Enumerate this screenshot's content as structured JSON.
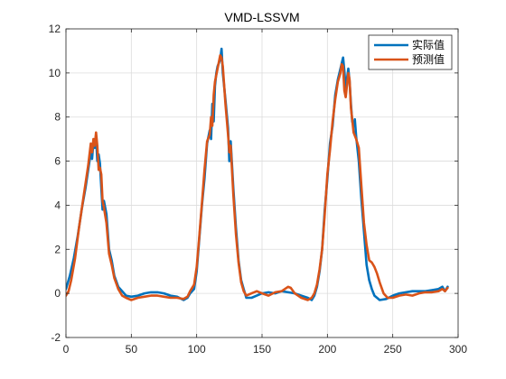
{
  "chart_data": {
    "type": "line",
    "title": "VMD-LSSVM",
    "xlabel": "",
    "ylabel": "",
    "xlim": [
      0,
      300
    ],
    "ylim": [
      -2,
      12
    ],
    "xticks": [
      0,
      50,
      100,
      150,
      200,
      250,
      300
    ],
    "yticks": [
      -2,
      0,
      2,
      4,
      6,
      8,
      10,
      12
    ],
    "grid": true,
    "legend_position": "top-right",
    "series": [
      {
        "name": "实际值",
        "color": "#0072BD",
        "points": [
          [
            0,
            0.2
          ],
          [
            3,
            0.8
          ],
          [
            6,
            1.6
          ],
          [
            9,
            2.6
          ],
          [
            12,
            3.8
          ],
          [
            15,
            4.8
          ],
          [
            17,
            5.6
          ],
          [
            19,
            6.4
          ],
          [
            20,
            6.1
          ],
          [
            21,
            6.9
          ],
          [
            22,
            6.6
          ],
          [
            23,
            7.1
          ],
          [
            24,
            6.0
          ],
          [
            25,
            6.3
          ],
          [
            26,
            5.9
          ],
          [
            27,
            4.8
          ],
          [
            28,
            3.8
          ],
          [
            29,
            4.2
          ],
          [
            31,
            3.6
          ],
          [
            33,
            2.0
          ],
          [
            35,
            1.5
          ],
          [
            37,
            0.8
          ],
          [
            40,
            0.3
          ],
          [
            43,
            0.1
          ],
          [
            46,
            -0.1
          ],
          [
            50,
            -0.15
          ],
          [
            55,
            -0.1
          ],
          [
            60,
            0.0
          ],
          [
            65,
            0.05
          ],
          [
            70,
            0.05
          ],
          [
            75,
            0.0
          ],
          [
            80,
            -0.1
          ],
          [
            85,
            -0.15
          ],
          [
            90,
            -0.3
          ],
          [
            93,
            -0.2
          ],
          [
            95,
            0.0
          ],
          [
            98,
            0.2
          ],
          [
            100,
            1.0
          ],
          [
            102,
            2.5
          ],
          [
            104,
            4.0
          ],
          [
            106,
            5.2
          ],
          [
            108,
            6.8
          ],
          [
            110,
            7.4
          ],
          [
            111,
            7.0
          ],
          [
            112,
            8.6
          ],
          [
            113,
            7.8
          ],
          [
            114,
            9.4
          ],
          [
            115,
            10.0
          ],
          [
            116,
            10.3
          ],
          [
            118,
            10.6
          ],
          [
            119,
            11.1
          ],
          [
            120,
            10.0
          ],
          [
            122,
            8.8
          ],
          [
            124,
            7.5
          ],
          [
            125,
            6.0
          ],
          [
            126,
            6.9
          ],
          [
            128,
            4.8
          ],
          [
            130,
            3.0
          ],
          [
            132,
            1.5
          ],
          [
            134,
            0.6
          ],
          [
            136,
            0.2
          ],
          [
            138,
            -0.2
          ],
          [
            142,
            -0.2
          ],
          [
            146,
            -0.1
          ],
          [
            150,
            0.0
          ],
          [
            155,
            0.05
          ],
          [
            160,
            0.0
          ],
          [
            165,
            0.1
          ],
          [
            170,
            0.05
          ],
          [
            175,
            0.0
          ],
          [
            180,
            -0.1
          ],
          [
            185,
            -0.2
          ],
          [
            188,
            -0.3
          ],
          [
            190,
            -0.1
          ],
          [
            192,
            0.3
          ],
          [
            194,
            1.0
          ],
          [
            196,
            2.0
          ],
          [
            198,
            3.8
          ],
          [
            200,
            5.2
          ],
          [
            202,
            6.8
          ],
          [
            204,
            7.6
          ],
          [
            206,
            9.0
          ],
          [
            208,
            9.7
          ],
          [
            210,
            10.2
          ],
          [
            212,
            10.7
          ],
          [
            213,
            10.1
          ],
          [
            214,
            9.3
          ],
          [
            216,
            10.2
          ],
          [
            217,
            9.6
          ],
          [
            218,
            8.6
          ],
          [
            219,
            7.8
          ],
          [
            220,
            7.6
          ],
          [
            221,
            7.9
          ],
          [
            222,
            7.1
          ],
          [
            224,
            6.0
          ],
          [
            226,
            4.3
          ],
          [
            228,
            2.8
          ],
          [
            230,
            1.3
          ],
          [
            232,
            0.6
          ],
          [
            234,
            0.2
          ],
          [
            236,
            -0.1
          ],
          [
            240,
            -0.3
          ],
          [
            245,
            -0.25
          ],
          [
            250,
            -0.1
          ],
          [
            255,
            0.0
          ],
          [
            260,
            0.05
          ],
          [
            265,
            0.1
          ],
          [
            270,
            0.1
          ],
          [
            275,
            0.1
          ],
          [
            280,
            0.15
          ],
          [
            285,
            0.2
          ],
          [
            288,
            0.3
          ],
          [
            290,
            0.1
          ],
          [
            292,
            0.3
          ]
        ]
      },
      {
        "name": "预测值",
        "color": "#D95319",
        "points": [
          [
            0,
            -0.1
          ],
          [
            2,
            0.1
          ],
          [
            4,
            0.6
          ],
          [
            7,
            1.6
          ],
          [
            10,
            3.0
          ],
          [
            13,
            4.2
          ],
          [
            15,
            5.0
          ],
          [
            17,
            5.8
          ],
          [
            19,
            6.8
          ],
          [
            20,
            6.4
          ],
          [
            21,
            7.0
          ],
          [
            22,
            6.7
          ],
          [
            23,
            7.3
          ],
          [
            24,
            6.7
          ],
          [
            25,
            5.6
          ],
          [
            26,
            5.7
          ],
          [
            27,
            5.4
          ],
          [
            28,
            4.2
          ],
          [
            29,
            3.9
          ],
          [
            31,
            3.2
          ],
          [
            33,
            1.8
          ],
          [
            35,
            1.3
          ],
          [
            37,
            0.7
          ],
          [
            40,
            0.2
          ],
          [
            43,
            -0.1
          ],
          [
            46,
            -0.2
          ],
          [
            50,
            -0.3
          ],
          [
            55,
            -0.2
          ],
          [
            60,
            -0.15
          ],
          [
            65,
            -0.1
          ],
          [
            70,
            -0.1
          ],
          [
            75,
            -0.15
          ],
          [
            80,
            -0.2
          ],
          [
            85,
            -0.2
          ],
          [
            90,
            -0.25
          ],
          [
            93,
            -0.15
          ],
          [
            95,
            0.1
          ],
          [
            98,
            0.4
          ],
          [
            100,
            1.2
          ],
          [
            102,
            2.6
          ],
          [
            104,
            4.1
          ],
          [
            106,
            5.6
          ],
          [
            108,
            6.9
          ],
          [
            110,
            7.2
          ],
          [
            111,
            8.0
          ],
          [
            112,
            7.6
          ],
          [
            113,
            9.0
          ],
          [
            114,
            9.6
          ],
          [
            116,
            10.2
          ],
          [
            118,
            10.8
          ],
          [
            119,
            10.7
          ],
          [
            120,
            10.3
          ],
          [
            122,
            8.6
          ],
          [
            124,
            7.2
          ],
          [
            125,
            6.4
          ],
          [
            126,
            6.7
          ],
          [
            128,
            4.5
          ],
          [
            130,
            2.7
          ],
          [
            132,
            1.4
          ],
          [
            134,
            0.5
          ],
          [
            136,
            0.1
          ],
          [
            138,
            -0.1
          ],
          [
            142,
            0.0
          ],
          [
            146,
            0.1
          ],
          [
            150,
            0.0
          ],
          [
            155,
            -0.1
          ],
          [
            160,
            0.05
          ],
          [
            165,
            0.1
          ],
          [
            170,
            0.3
          ],
          [
            172,
            0.25
          ],
          [
            175,
            0.0
          ],
          [
            180,
            -0.2
          ],
          [
            185,
            -0.3
          ],
          [
            188,
            -0.2
          ],
          [
            190,
            0.0
          ],
          [
            192,
            0.4
          ],
          [
            194,
            1.1
          ],
          [
            196,
            2.0
          ],
          [
            198,
            3.6
          ],
          [
            200,
            5.4
          ],
          [
            202,
            6.5
          ],
          [
            204,
            7.8
          ],
          [
            206,
            8.8
          ],
          [
            208,
            9.6
          ],
          [
            210,
            10.0
          ],
          [
            211,
            10.4
          ],
          [
            212,
            10.3
          ],
          [
            213,
            9.2
          ],
          [
            214,
            8.9
          ],
          [
            216,
            10.0
          ],
          [
            217,
            9.7
          ],
          [
            218,
            8.4
          ],
          [
            219,
            7.9
          ],
          [
            220,
            7.3
          ],
          [
            222,
            7.0
          ],
          [
            224,
            6.6
          ],
          [
            226,
            4.9
          ],
          [
            228,
            3.2
          ],
          [
            230,
            2.2
          ],
          [
            232,
            1.5
          ],
          [
            234,
            1.4
          ],
          [
            236,
            1.2
          ],
          [
            238,
            0.9
          ],
          [
            240,
            0.5
          ],
          [
            243,
            0.0
          ],
          [
            246,
            -0.2
          ],
          [
            250,
            -0.2
          ],
          [
            255,
            -0.1
          ],
          [
            260,
            -0.05
          ],
          [
            265,
            -0.1
          ],
          [
            270,
            0.0
          ],
          [
            275,
            0.05
          ],
          [
            280,
            0.05
          ],
          [
            285,
            0.1
          ],
          [
            288,
            0.2
          ],
          [
            290,
            0.1
          ],
          [
            292,
            0.25
          ]
        ]
      }
    ]
  }
}
